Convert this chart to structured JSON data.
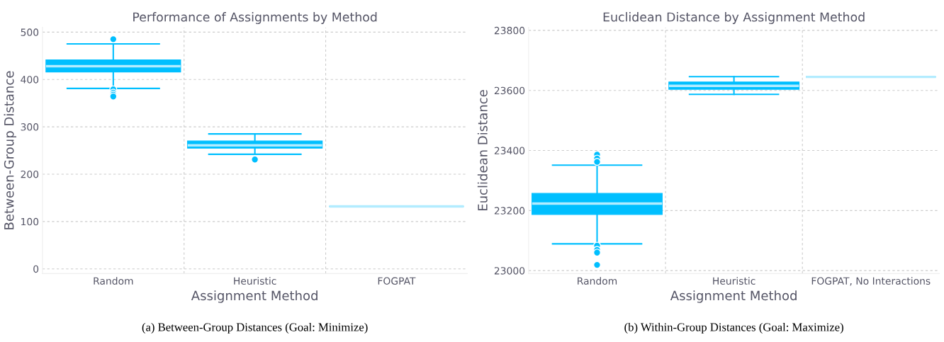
{
  "chart_data": [
    {
      "type": "box",
      "title": "Performance of Assignments by Method",
      "xlabel": "Assignment Method",
      "ylabel": "Between-Group Distance",
      "categories": [
        "Random",
        "Heuristic",
        "FOGPAT"
      ],
      "color": "#00bfff",
      "boxes": [
        {
          "low": 381,
          "q1": 416,
          "median": 428,
          "q3": 441,
          "high": 475,
          "outliers": [
            485,
            379,
            372,
            368,
            364
          ]
        },
        {
          "low": 242,
          "q1": 255,
          "median": 261,
          "q3": 270,
          "high": 285,
          "outliers": [
            231
          ]
        },
        {
          "low": 132,
          "q1": 132,
          "median": 132,
          "q3": 132,
          "high": 132
        }
      ],
      "ylim": [
        -10,
        510
      ],
      "yticks": [
        0,
        100,
        200,
        300,
        400,
        500
      ],
      "grid": true,
      "annotations": [
        "(a) Between-Group Distances (Goal: Minimize)"
      ]
    },
    {
      "type": "box",
      "title": "Euclidean Distance by Assignment Method",
      "xlabel": "Assignment Method",
      "ylabel": "Euclidean Distance",
      "categories": [
        "Random",
        "Heuristic",
        "FOGPAT, No Interactions"
      ],
      "color": "#00bfff",
      "boxes": [
        {
          "low": 23089,
          "q1": 23187,
          "median": 23223,
          "q3": 23257,
          "high": 23351,
          "outliers": [
            23386,
            23373,
            23362,
            23083,
            23069,
            23060,
            23019
          ]
        },
        {
          "low": 23587,
          "q1": 23604,
          "median": 23615,
          "q3": 23628,
          "high": 23646
        },
        {
          "low": 23645,
          "q1": 23645,
          "median": 23645,
          "q3": 23645,
          "high": 23645
        }
      ],
      "ylim": [
        22990,
        23810
      ],
      "yticks": [
        23000,
        23200,
        23400,
        23600,
        23800
      ],
      "grid": true,
      "annotations": [
        "(b) Within-Group Distances (Goal: Maximize)"
      ]
    }
  ]
}
